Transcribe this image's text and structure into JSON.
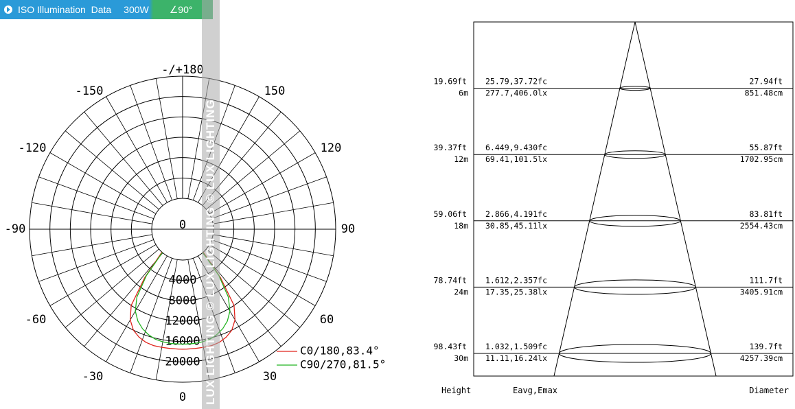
{
  "header": {
    "title": "ISO Illumination  Data",
    "power": "300W",
    "angle": "∠90°",
    "accent_color": "#2a9ad8",
    "accent_color_2": "#3cb36a"
  },
  "watermark": "LUX LIGHTING  ©  LUX LIGHTING  ©  LUX LIGHTING",
  "chart_data": [
    {
      "type": "polar",
      "angle_labels": [
        "-/+180",
        "-150",
        "150",
        "-120",
        "120",
        "-90",
        "90",
        "-60",
        "60",
        "-30",
        "30",
        "0"
      ],
      "radial_labels": [
        "0",
        "4000",
        "8000",
        "12000",
        "16000",
        "20000"
      ],
      "radial_max": 24000,
      "grid": true,
      "series": [
        {
          "name": "C0/180,83.4°",
          "color": "#e0231c",
          "angles": [
            -42,
            -38,
            -34,
            -30,
            -26,
            -22,
            -18,
            -14,
            -10,
            -6,
            -2,
            0,
            2,
            6,
            10,
            14,
            18,
            22,
            26,
            30,
            34,
            38,
            42
          ],
          "values": [
            0,
            6000,
            12000,
            14500,
            16000,
            16800,
            17300,
            17500,
            17500,
            17500,
            17500,
            17500,
            17500,
            17500,
            17500,
            17500,
            17300,
            16800,
            16000,
            14500,
            12000,
            6000,
            0
          ]
        },
        {
          "name": "C90/270,81.5°",
          "color": "#22b320",
          "angles": [
            -41,
            -38,
            -34,
            -30,
            -26,
            -22,
            -18,
            -14,
            -10,
            -6,
            -2,
            0,
            2,
            6,
            10,
            14,
            18,
            22,
            26,
            30,
            34,
            38,
            41
          ],
          "values": [
            0,
            5500,
            10000,
            12500,
            14000,
            15000,
            15700,
            16200,
            16400,
            16500,
            16500,
            16500,
            16500,
            16500,
            16400,
            16200,
            15700,
            15000,
            14000,
            12500,
            10000,
            5500,
            0
          ]
        }
      ]
    },
    {
      "type": "table",
      "title": "",
      "columns": [
        "Height",
        "Eavg,Emax",
        "Diameter"
      ],
      "rows": [
        {
          "height_ft": "19.69ft",
          "height_m": "6m",
          "eavg_fc": "25.79,37.72fc",
          "eavg_lx": "277.7,406.0lx",
          "dia_ft": "27.94ft",
          "dia_cm": "851.48cm"
        },
        {
          "height_ft": "39.37ft",
          "height_m": "12m",
          "eavg_fc": "6.449,9.430fc",
          "eavg_lx": "69.41,101.5lx",
          "dia_ft": "55.87ft",
          "dia_cm": "1702.95cm"
        },
        {
          "height_ft": "59.06ft",
          "height_m": "18m",
          "eavg_fc": "2.866,4.191fc",
          "eavg_lx": "30.85,45.11lx",
          "dia_ft": "83.81ft",
          "dia_cm": "2554.43cm"
        },
        {
          "height_ft": "78.74ft",
          "height_m": "24m",
          "eavg_fc": "1.612,2.357fc",
          "eavg_lx": "17.35,25.38lx",
          "dia_ft": "111.7ft",
          "dia_cm": "3405.91cm"
        },
        {
          "height_ft": "98.43ft",
          "height_m": "30m",
          "eavg_fc": "1.032,1.509fc",
          "eavg_lx": "11.11,16.24lx",
          "dia_ft": "139.7ft",
          "dia_cm": "4257.39cm"
        }
      ],
      "heights_m": [
        6,
        12,
        18,
        24,
        30
      ],
      "diameters_cm": [
        851.48,
        1702.95,
        2554.43,
        3405.91,
        4257.39
      ]
    }
  ]
}
